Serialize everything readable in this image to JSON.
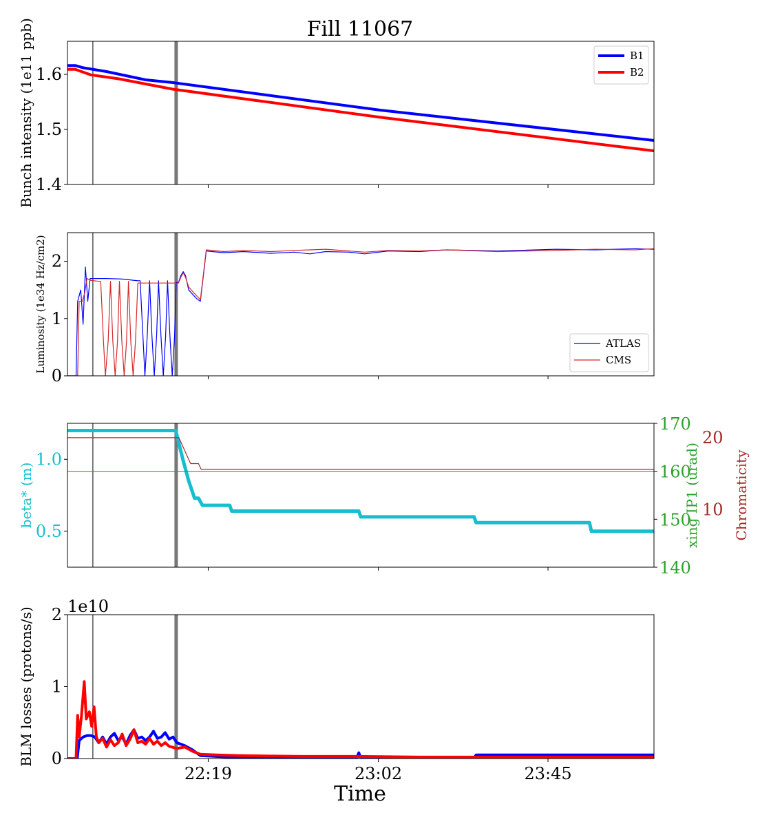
{
  "chart_data": [
    {
      "type": "line",
      "title": "Fill 11067",
      "xlabel": "",
      "ylabel": "Bunch intensity (1e11 ppb)",
      "ylim": [
        1.4,
        1.66
      ],
      "yticks": [
        1.4,
        1.5,
        1.6
      ],
      "xticks": [
        "22:19",
        "23:02",
        "23:45"
      ],
      "legend": "top-right",
      "colors": {
        "B1": "#0000ff",
        "B2": "#ff0000"
      },
      "series": [
        {
          "name": "B1",
          "points": [
            [
              0,
              1.616
            ],
            [
              2,
              1.616
            ],
            [
              4,
              1.612
            ],
            [
              10,
              1.605
            ],
            [
              20,
              1.59
            ],
            [
              27,
              1.585
            ],
            [
              80,
              1.535
            ],
            [
              150,
              1.48
            ]
          ]
        },
        {
          "name": "B2",
          "points": [
            [
              0,
              1.609
            ],
            [
              2,
              1.609
            ],
            [
              6,
              1.599
            ],
            [
              13,
              1.592
            ],
            [
              27,
              1.573
            ],
            [
              80,
              1.522
            ],
            [
              150,
              1.461
            ]
          ]
        }
      ]
    },
    {
      "type": "line",
      "ylabel": "Luminosity (1e34 Hz/cm2)",
      "ylim": [
        0,
        2.5
      ],
      "yticks": [
        0,
        1,
        2
      ],
      "xticks": [
        "22:19",
        "23:02",
        "23:45"
      ],
      "legend": "bottom-right",
      "colors": {
        "ATLAS": "#0000ff",
        "CMS": "#d62728"
      },
      "series": [
        {
          "name": "ATLAS",
          "points": [
            [
              0,
              0
            ],
            [
              2.2,
              0
            ],
            [
              2.6,
              1.3
            ],
            [
              3.4,
              1.5
            ],
            [
              4.0,
              0.9
            ],
            [
              4.6,
              1.9
            ],
            [
              5.2,
              1.3
            ],
            [
              5.8,
              1.7
            ],
            [
              10,
              1.7
            ],
            [
              14,
              1.69
            ],
            [
              18,
              1.66
            ],
            [
              18.6,
              1.66
            ],
            [
              19.3,
              0.7
            ],
            [
              19.8,
              0
            ],
            [
              20.4,
              0.7
            ],
            [
              21.0,
              1.66
            ],
            [
              21.6,
              0.7
            ],
            [
              22.2,
              0
            ],
            [
              22.8,
              0.7
            ],
            [
              23.3,
              1.66
            ],
            [
              23.9,
              0.7
            ],
            [
              24.5,
              0
            ],
            [
              25.1,
              0.7
            ],
            [
              25.6,
              1.66
            ],
            [
              26.2,
              0.7
            ],
            [
              26.8,
              0
            ],
            [
              27.4,
              0.7
            ],
            [
              27.8,
              1.63
            ],
            [
              28.4,
              1.63
            ],
            [
              29,
              1.75
            ],
            [
              29.6,
              1.82
            ],
            [
              30.2,
              1.75
            ],
            [
              31,
              1.5
            ],
            [
              33,
              1.35
            ],
            [
              34,
              1.3
            ],
            [
              35.5,
              2.18
            ],
            [
              40,
              2.15
            ],
            [
              45,
              2.17
            ],
            [
              52,
              2.14
            ],
            [
              58,
              2.16
            ],
            [
              62,
              2.13
            ],
            [
              66,
              2.17
            ],
            [
              72,
              2.16
            ],
            [
              76,
              2.13
            ],
            [
              82,
              2.18
            ],
            [
              90,
              2.17
            ],
            [
              97,
              2.2
            ],
            [
              110,
              2.18
            ],
            [
              125,
              2.21
            ],
            [
              135,
              2.2
            ],
            [
              145,
              2.22
            ],
            [
              150,
              2.21
            ]
          ]
        },
        {
          "name": "CMS",
          "points": [
            [
              0,
              0
            ],
            [
              2.6,
              0
            ],
            [
              3.0,
              1.3
            ],
            [
              3.8,
              1.3
            ],
            [
              4.4,
              1.45
            ],
            [
              5.0,
              1.7
            ],
            [
              5.8,
              1.67
            ],
            [
              8.0,
              1.65
            ],
            [
              8.5,
              1.65
            ],
            [
              9.2,
              0.6
            ],
            [
              9.7,
              0
            ],
            [
              10.4,
              0.6
            ],
            [
              11.0,
              1.65
            ],
            [
              11.6,
              0.6
            ],
            [
              12.2,
              0
            ],
            [
              12.8,
              0.6
            ],
            [
              13.3,
              1.65
            ],
            [
              13.9,
              0.6
            ],
            [
              14.5,
              0
            ],
            [
              15.1,
              0.6
            ],
            [
              15.6,
              1.65
            ],
            [
              16.2,
              0.6
            ],
            [
              16.8,
              0
            ],
            [
              17.4,
              0.6
            ],
            [
              18.0,
              1.62
            ],
            [
              28.4,
              1.62
            ],
            [
              29,
              1.72
            ],
            [
              29.6,
              1.8
            ],
            [
              30.2,
              1.72
            ],
            [
              31,
              1.55
            ],
            [
              33,
              1.4
            ],
            [
              34,
              1.33
            ],
            [
              35.5,
              2.2
            ],
            [
              40,
              2.17
            ],
            [
              45,
              2.19
            ],
            [
              52,
              2.17
            ],
            [
              58,
              2.19
            ],
            [
              62,
              2.2
            ],
            [
              66,
              2.21
            ],
            [
              72,
              2.18
            ],
            [
              76,
              2.16
            ],
            [
              82,
              2.19
            ],
            [
              90,
              2.18
            ],
            [
              97,
              2.2
            ],
            [
              110,
              2.17
            ],
            [
              125,
              2.19
            ],
            [
              135,
              2.21
            ],
            [
              145,
              2.2
            ],
            [
              150,
              2.22
            ]
          ]
        }
      ]
    },
    {
      "type": "line",
      "ylabel": "beta* (m)",
      "ylabel_right": "xing IP1 (urad)",
      "ylabel_right2": "Chromaticity",
      "ylim": [
        0.25,
        1.25
      ],
      "yticks": [
        0.5,
        1.0
      ],
      "ylim_right": [
        140,
        170
      ],
      "yticks_right": [
        140,
        150,
        160,
        170
      ],
      "ylim_right2": [
        2,
        22
      ],
      "yticks_right2": [
        10,
        20
      ],
      "xticks": [
        "22:19",
        "23:02",
        "23:45"
      ],
      "colors": {
        "beta": "#17becf",
        "xing": "#2ca02c",
        "chroma": "#a52a2a"
      },
      "series": [
        {
          "name": "",
          "axis": "left",
          "points": [
            [
              0,
              1.2
            ],
            [
              27.7,
              1.2
            ],
            [
              29.5,
              1.0
            ],
            [
              31.0,
              0.85
            ],
            [
              32.5,
              0.73
            ],
            [
              33.5,
              0.73
            ],
            [
              34.5,
              0.68
            ],
            [
              41.5,
              0.68
            ],
            [
              42,
              0.64
            ],
            [
              74.5,
              0.64
            ],
            [
              75,
              0.6
            ],
            [
              104,
              0.6
            ],
            [
              104.5,
              0.56
            ],
            [
              133.5,
              0.56
            ],
            [
              134,
              0.5
            ],
            [
              150,
              0.5
            ]
          ]
        },
        {
          "name": "",
          "axis": "right",
          "points": [
            [
              0,
              160
            ],
            [
              150,
              160
            ]
          ]
        },
        {
          "name": "",
          "axis": "right2",
          "points": [
            [
              0,
              20
            ],
            [
              28.5,
              20
            ],
            [
              31.5,
              16.4
            ],
            [
              33.5,
              16.4
            ],
            [
              34.2,
              15.6
            ],
            [
              150,
              15.6
            ]
          ]
        }
      ]
    },
    {
      "type": "line",
      "ylabel": "BLM losses (protons/s)",
      "offset_label": "1e10",
      "ylim": [
        0,
        2
      ],
      "yticks": [
        0,
        1,
        2
      ],
      "xticks": [
        "22:19",
        "23:02",
        "23:45"
      ],
      "xlabel": "Time",
      "colors": {
        "blue": "#0000ff",
        "red": "#ff0000"
      },
      "series": [
        {
          "name": "",
          "points": [
            [
              0,
              0
            ],
            [
              2.5,
              0
            ],
            [
              3,
              0.25
            ],
            [
              4,
              0.3
            ],
            [
              5,
              0.32
            ],
            [
              6,
              0.32
            ],
            [
              7,
              0.3
            ],
            [
              8,
              0.22
            ],
            [
              9,
              0.3
            ],
            [
              10,
              0.2
            ],
            [
              11,
              0.3
            ],
            [
              12,
              0.35
            ],
            [
              13,
              0.25
            ],
            [
              14,
              0.3
            ],
            [
              15,
              0.2
            ],
            [
              16,
              0.32
            ],
            [
              17,
              0.4
            ],
            [
              18,
              0.28
            ],
            [
              19,
              0.3
            ],
            [
              20,
              0.25
            ],
            [
              21,
              0.3
            ],
            [
              22,
              0.38
            ],
            [
              23,
              0.28
            ],
            [
              24,
              0.3
            ],
            [
              25,
              0.36
            ],
            [
              26,
              0.27
            ],
            [
              27,
              0.3
            ],
            [
              28,
              0.22
            ],
            [
              30,
              0.18
            ],
            [
              32,
              0.12
            ],
            [
              34,
              0.04
            ],
            [
              38,
              0.03
            ],
            [
              42,
              0.02
            ],
            [
              60,
              0.01
            ],
            [
              74,
              0.01
            ],
            [
              74.5,
              0.08
            ],
            [
              75,
              0.01
            ],
            [
              90,
              0.01
            ],
            [
              104,
              0.01
            ],
            [
              104.5,
              0.05
            ],
            [
              120,
              0.05
            ],
            [
              135,
              0.05
            ],
            [
              150,
              0.05
            ]
          ]
        },
        {
          "name": "",
          "points": [
            [
              0,
              0
            ],
            [
              2.2,
              0
            ],
            [
              2.6,
              0.6
            ],
            [
              3,
              0.3
            ],
            [
              3.6,
              0.6
            ],
            [
              4.3,
              1.07
            ],
            [
              4.8,
              0.55
            ],
            [
              5.6,
              0.65
            ],
            [
              6.2,
              0.45
            ],
            [
              6.8,
              0.72
            ],
            [
              7.4,
              0.3
            ],
            [
              8,
              0.22
            ],
            [
              9,
              0.28
            ],
            [
              10,
              0.16
            ],
            [
              11,
              0.26
            ],
            [
              12,
              0.18
            ],
            [
              13,
              0.22
            ],
            [
              14,
              0.34
            ],
            [
              15,
              0.18
            ],
            [
              16,
              0.27
            ],
            [
              17,
              0.4
            ],
            [
              18,
              0.22
            ],
            [
              19,
              0.24
            ],
            [
              20,
              0.2
            ],
            [
              21,
              0.28
            ],
            [
              22,
              0.2
            ],
            [
              23,
              0.24
            ],
            [
              24,
              0.18
            ],
            [
              25,
              0.22
            ],
            [
              26,
              0.17
            ],
            [
              28,
              0.14
            ],
            [
              30,
              0.16
            ],
            [
              32,
              0.1
            ],
            [
              34,
              0.06
            ],
            [
              38,
              0.05
            ],
            [
              44,
              0.04
            ],
            [
              60,
              0.03
            ],
            [
              74,
              0.03
            ],
            [
              90,
              0.02
            ],
            [
              110,
              0.02
            ],
            [
              130,
              0.02
            ],
            [
              150,
              0.02
            ]
          ]
        }
      ]
    }
  ],
  "markers": [
    6.5,
    27.8
  ]
}
